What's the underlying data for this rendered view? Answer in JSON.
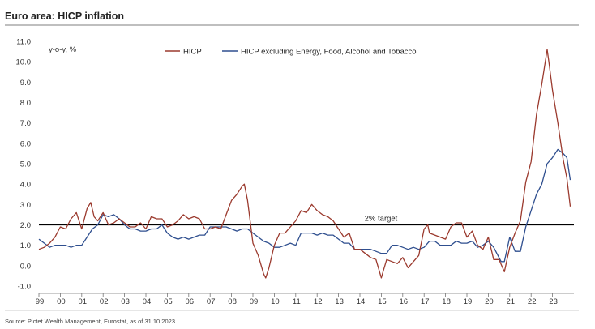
{
  "chart_data": {
    "type": "line",
    "title": "Euro area: HICP inflation",
    "ylabel": "y-o-y, %",
    "xlabel": "",
    "ylim": [
      -1.0,
      11.0
    ],
    "yticks": [
      "11.0",
      "10.0",
      "9.0",
      "8.0",
      "7.0",
      "6.0",
      "5.0",
      "4.0",
      "3.0",
      "2.0",
      "1.0",
      "0.0",
      "-1.0"
    ],
    "xlim": [
      1999.0,
      2024.0
    ],
    "xticks": [
      "99",
      "00",
      "01",
      "02",
      "03",
      "04",
      "05",
      "06",
      "07",
      "08",
      "09",
      "10",
      "11",
      "12",
      "13",
      "14",
      "15",
      "16",
      "17",
      "18",
      "19",
      "20",
      "21",
      "22",
      "23"
    ],
    "reference_line": {
      "value": 2.0,
      "label": "2% target"
    },
    "source": "Source: Pictet Wealth Management, Eurostat, as of 31.10.2023",
    "series": [
      {
        "name": "HICP",
        "color": "#9b3a2e",
        "x": [
          1999.0,
          1999.25,
          1999.5,
          1999.75,
          2000.0,
          2000.25,
          2000.5,
          2000.75,
          2001.0,
          2001.25,
          2001.42,
          2001.58,
          2001.75,
          2002.0,
          2002.25,
          2002.5,
          2002.75,
          2003.0,
          2003.25,
          2003.5,
          2003.75,
          2004.0,
          2004.25,
          2004.5,
          2004.75,
          2005.0,
          2005.25,
          2005.5,
          2005.75,
          2006.0,
          2006.25,
          2006.5,
          2006.75,
          2007.0,
          2007.25,
          2007.5,
          2007.75,
          2008.0,
          2008.25,
          2008.5,
          2008.6,
          2008.75,
          2009.0,
          2009.25,
          2009.5,
          2009.6,
          2009.75,
          2010.0,
          2010.25,
          2010.5,
          2010.75,
          2011.0,
          2011.25,
          2011.5,
          2011.75,
          2012.0,
          2012.25,
          2012.5,
          2012.75,
          2013.0,
          2013.25,
          2013.5,
          2013.75,
          2014.0,
          2014.25,
          2014.5,
          2014.75,
          2015.0,
          2015.08,
          2015.25,
          2015.5,
          2015.75,
          2016.0,
          2016.25,
          2016.5,
          2016.75,
          2017.0,
          2017.17,
          2017.25,
          2017.5,
          2017.75,
          2018.0,
          2018.25,
          2018.5,
          2018.75,
          2019.0,
          2019.25,
          2019.5,
          2019.75,
          2020.0,
          2020.25,
          2020.5,
          2020.75,
          2021.0,
          2021.25,
          2021.5,
          2021.75,
          2022.0,
          2022.25,
          2022.5,
          2022.75,
          2022.83,
          2023.0,
          2023.25,
          2023.5,
          2023.67,
          2023.83
        ],
        "values": [
          0.8,
          0.9,
          1.1,
          1.4,
          1.9,
          1.8,
          2.3,
          2.6,
          1.8,
          2.8,
          3.1,
          2.4,
          2.2,
          2.6,
          2.0,
          2.1,
          2.3,
          2.1,
          1.9,
          1.9,
          2.1,
          1.8,
          2.4,
          2.3,
          2.3,
          1.9,
          2.0,
          2.2,
          2.5,
          2.3,
          2.4,
          2.3,
          1.8,
          1.8,
          1.9,
          1.8,
          2.5,
          3.2,
          3.5,
          3.9,
          4.0,
          3.2,
          1.1,
          0.5,
          -0.4,
          -0.6,
          -0.1,
          1.0,
          1.6,
          1.6,
          1.9,
          2.2,
          2.7,
          2.6,
          3.0,
          2.7,
          2.5,
          2.4,
          2.2,
          1.8,
          1.4,
          1.6,
          0.8,
          0.8,
          0.6,
          0.4,
          0.3,
          -0.6,
          -0.3,
          0.3,
          0.2,
          0.1,
          0.4,
          -0.1,
          0.2,
          0.5,
          1.8,
          2.0,
          1.6,
          1.5,
          1.4,
          1.3,
          1.9,
          2.1,
          2.1,
          1.4,
          1.7,
          1.0,
          0.8,
          1.4,
          0.3,
          0.3,
          -0.3,
          0.9,
          1.6,
          2.2,
          4.1,
          5.1,
          7.4,
          8.9,
          10.6,
          10.0,
          8.6,
          7.0,
          5.2,
          4.3,
          2.9
        ]
      },
      {
        "name": "HICP excluding Energy, Food, Alcohol and Tobacco",
        "color": "#2f4f8f",
        "x": [
          1999.0,
          1999.25,
          1999.5,
          1999.75,
          2000.0,
          2000.25,
          2000.5,
          2000.75,
          2001.0,
          2001.25,
          2001.5,
          2001.75,
          2002.0,
          2002.25,
          2002.5,
          2002.75,
          2003.0,
          2003.25,
          2003.5,
          2003.75,
          2004.0,
          2004.25,
          2004.5,
          2004.75,
          2005.0,
          2005.25,
          2005.5,
          2005.75,
          2006.0,
          2006.25,
          2006.5,
          2006.75,
          2007.0,
          2007.25,
          2007.5,
          2007.75,
          2008.0,
          2008.25,
          2008.5,
          2008.75,
          2009.0,
          2009.25,
          2009.5,
          2009.75,
          2010.0,
          2010.25,
          2010.5,
          2010.75,
          2011.0,
          2011.25,
          2011.5,
          2011.75,
          2012.0,
          2012.25,
          2012.5,
          2012.75,
          2013.0,
          2013.25,
          2013.5,
          2013.75,
          2014.0,
          2014.25,
          2014.5,
          2014.75,
          2015.0,
          2015.25,
          2015.5,
          2015.75,
          2016.0,
          2016.25,
          2016.5,
          2016.75,
          2017.0,
          2017.25,
          2017.5,
          2017.75,
          2018.0,
          2018.25,
          2018.5,
          2018.75,
          2019.0,
          2019.25,
          2019.5,
          2019.75,
          2020.0,
          2020.25,
          2020.5,
          2020.6,
          2020.75,
          2021.0,
          2021.25,
          2021.5,
          2021.75,
          2022.0,
          2022.25,
          2022.5,
          2022.75,
          2023.0,
          2023.25,
          2023.5,
          2023.67,
          2023.83
        ],
        "values": [
          1.3,
          1.1,
          0.9,
          1.0,
          1.0,
          1.0,
          0.9,
          1.0,
          1.0,
          1.4,
          1.8,
          2.0,
          2.5,
          2.4,
          2.5,
          2.3,
          2.0,
          1.8,
          1.8,
          1.7,
          1.7,
          1.8,
          1.8,
          2.0,
          1.6,
          1.4,
          1.3,
          1.4,
          1.3,
          1.4,
          1.5,
          1.5,
          1.9,
          1.9,
          1.9,
          1.9,
          1.8,
          1.7,
          1.8,
          1.8,
          1.6,
          1.4,
          1.2,
          1.1,
          0.9,
          0.9,
          1.0,
          1.1,
          1.0,
          1.6,
          1.6,
          1.6,
          1.5,
          1.6,
          1.5,
          1.5,
          1.3,
          1.1,
          1.1,
          0.8,
          0.8,
          0.8,
          0.8,
          0.7,
          0.6,
          0.6,
          1.0,
          1.0,
          0.9,
          0.8,
          0.9,
          0.8,
          0.9,
          1.2,
          1.2,
          1.0,
          1.0,
          1.0,
          1.2,
          1.1,
          1.1,
          1.2,
          0.9,
          1.0,
          1.2,
          0.9,
          0.4,
          0.2,
          0.2,
          1.4,
          0.7,
          0.7,
          1.9,
          2.7,
          3.5,
          4.0,
          5.0,
          5.3,
          5.7,
          5.5,
          5.3,
          4.2
        ]
      }
    ]
  }
}
